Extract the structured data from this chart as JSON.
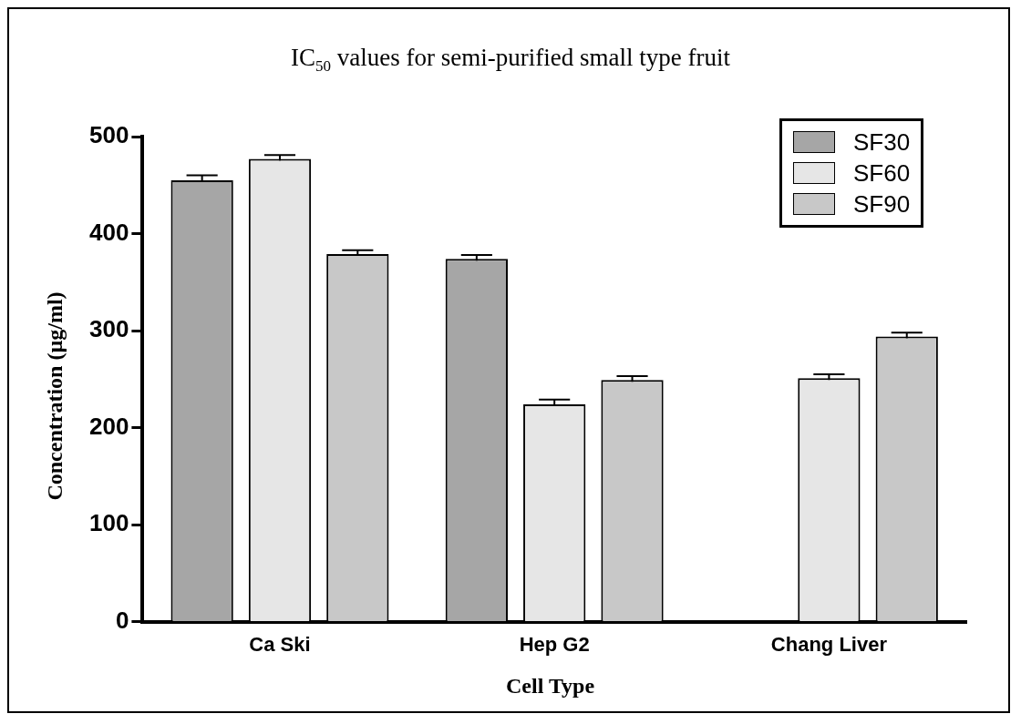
{
  "chart_data": {
    "type": "bar",
    "title": "IC$_{50}$ values for semi-purified small type fruit",
    "xlabel": "Cell Type",
    "ylabel": "Concentration (µg/ml)",
    "categories": [
      "Ca Ski",
      "Hep G2",
      "Chang Liver"
    ],
    "series": [
      {
        "name": "SF30",
        "color": "#a6a6a6",
        "values": [
          455,
          374,
          null
        ],
        "errors": [
          5,
          4,
          null
        ]
      },
      {
        "name": "SF60",
        "color": "#e6e6e6",
        "values": [
          477,
          224,
          251
        ],
        "errors": [
          4,
          5,
          4
        ]
      },
      {
        "name": "SF90",
        "color": "#c8c8c8",
        "values": [
          379,
          249,
          294
        ],
        "errors": [
          4,
          4,
          4
        ]
      }
    ],
    "ylim": [
      0,
      500
    ],
    "yticks": [
      0,
      100,
      200,
      300,
      400,
      500
    ],
    "grid": false,
    "legend": "top right"
  }
}
